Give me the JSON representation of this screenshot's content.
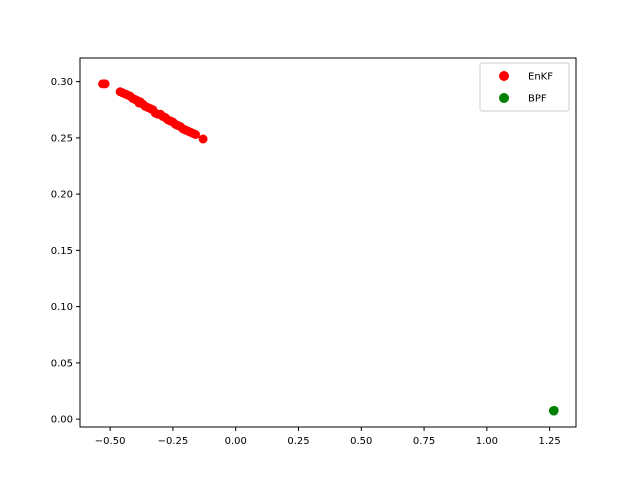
{
  "chart_data": {
    "type": "scatter",
    "title": "",
    "xlabel": "",
    "ylabel": "",
    "xlim": [
      -0.62,
      1.355
    ],
    "ylim": [
      -0.007,
      0.321
    ],
    "x_ticks": [
      -0.5,
      -0.25,
      0.0,
      0.25,
      0.5,
      0.75,
      1.0,
      1.25
    ],
    "x_tick_labels": [
      "−0.50",
      "−0.25",
      "0.00",
      "0.25",
      "0.50",
      "0.75",
      "1.00",
      "1.25"
    ],
    "y_ticks": [
      0.0,
      0.05,
      0.1,
      0.15,
      0.2,
      0.25,
      0.3
    ],
    "y_tick_labels": [
      "0.00",
      "0.05",
      "0.10",
      "0.15",
      "0.20",
      "0.25",
      "0.30"
    ],
    "grid": false,
    "legend_position": "top-right",
    "series": [
      {
        "name": "EnKF",
        "color": "#ff0000",
        "x": [
          -0.53,
          -0.52,
          -0.46,
          -0.45,
          -0.44,
          -0.43,
          -0.42,
          -0.41,
          -0.4,
          -0.39,
          -0.385,
          -0.38,
          -0.37,
          -0.36,
          -0.35,
          -0.34,
          -0.33,
          -0.32,
          -0.31,
          -0.3,
          -0.29,
          -0.28,
          -0.27,
          -0.26,
          -0.25,
          -0.24,
          -0.23,
          -0.22,
          -0.21,
          -0.2,
          -0.19,
          -0.18,
          -0.17,
          -0.16,
          -0.13
        ],
        "y": [
          0.298,
          0.298,
          0.291,
          0.29,
          0.289,
          0.288,
          0.287,
          0.285,
          0.284,
          0.283,
          0.281,
          0.282,
          0.28,
          0.278,
          0.277,
          0.276,
          0.275,
          0.272,
          0.271,
          0.271,
          0.269,
          0.268,
          0.266,
          0.265,
          0.264,
          0.262,
          0.261,
          0.26,
          0.258,
          0.257,
          0.256,
          0.255,
          0.254,
          0.253,
          0.249
        ]
      },
      {
        "name": "BPF",
        "color": "#008000",
        "x": [
          1.265,
          1.267,
          1.268
        ],
        "y": [
          0.0075,
          0.0072,
          0.0078
        ]
      }
    ]
  }
}
